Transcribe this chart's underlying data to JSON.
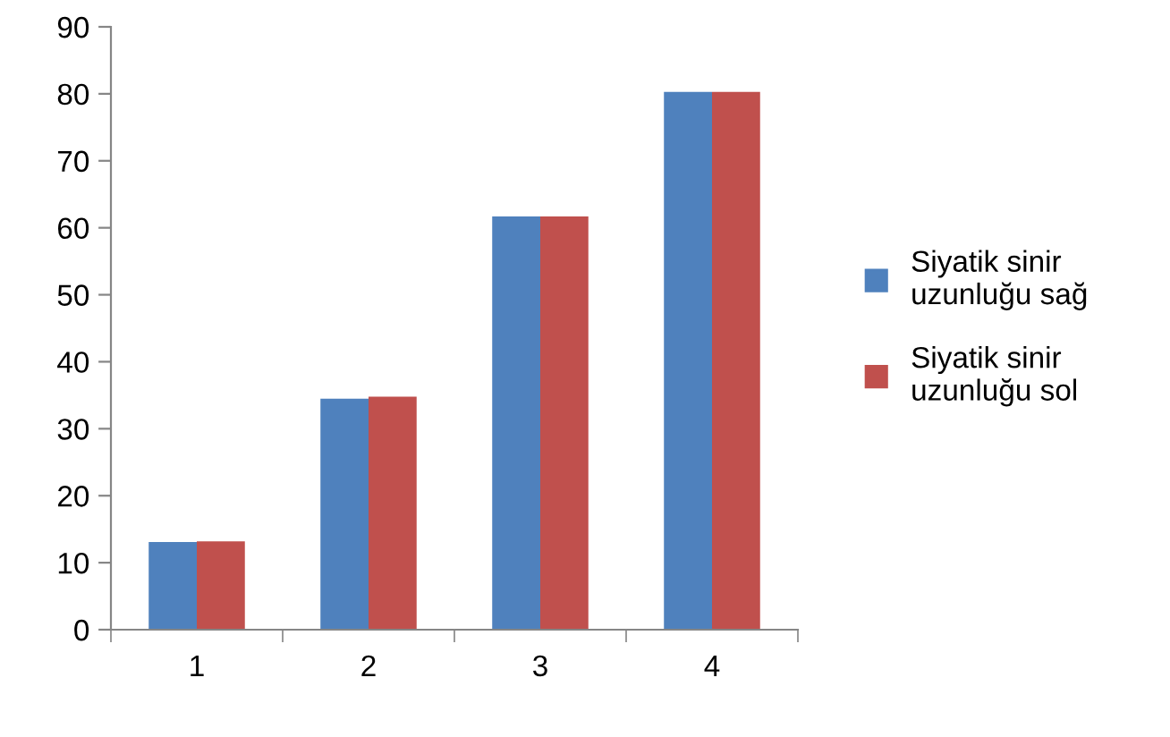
{
  "chart_data": {
    "type": "bar",
    "categories": [
      "1",
      "2",
      "3",
      "4"
    ],
    "series": [
      {
        "name": "Siyatik sinir uzunluğu sağ",
        "color": "#4f81bd",
        "values": [
          13.1,
          34.5,
          61.7,
          80.3
        ]
      },
      {
        "name": "Siyatik sinir uzunluğu sol",
        "color": "#c0504d",
        "values": [
          13.2,
          34.8,
          61.7,
          80.3
        ]
      }
    ],
    "ylim": [
      0,
      90
    ],
    "yticks": [
      0,
      10,
      20,
      30,
      40,
      50,
      60,
      70,
      80,
      90
    ],
    "grid": false,
    "legend": "right"
  }
}
